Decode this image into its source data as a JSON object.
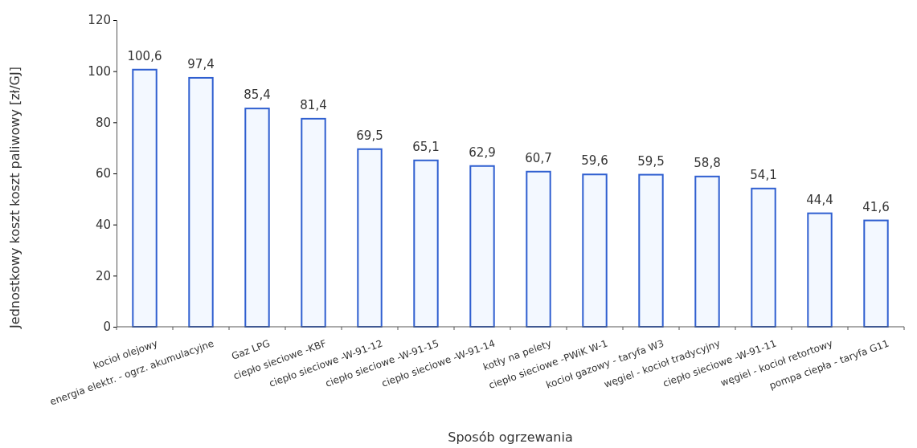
{
  "chart_data": {
    "type": "bar",
    "xlabel": "Sposób ogrzewania",
    "ylabel": "Jednostkowy koszt koszt paliwowy [zł/GJ]",
    "categories": [
      "kocioł olejowy",
      "energia elektr. - ogrz. akumulacyjne",
      "Gaz LPG",
      "ciepło sieciowe -KBF",
      "ciepło sieciowe -W-91-12",
      "ciepło sieciowe -W-91-15",
      "ciepło sieciowe -W-91-14",
      "kotły na pelety",
      "ciepło sieciowe -PWiK W-1",
      "kocioł gazowy - taryfa W3",
      "węgiel - kocioł tradycyjny",
      "ciepło sieciowe -W-91-11",
      "węgiel - kocioł retortowy",
      "pompa ciepła - taryfa G11"
    ],
    "values": [
      100.6,
      97.4,
      85.4,
      81.4,
      69.5,
      65.1,
      62.9,
      60.7,
      59.6,
      59.5,
      58.8,
      54.1,
      44.4,
      41.6
    ],
    "value_labels": [
      "100,6",
      "97,4",
      "85,4",
      "81,4",
      "69,5",
      "65,1",
      "62,9",
      "60,7",
      "59,6",
      "59,5",
      "58,8",
      "54,1",
      "44,4",
      "41,6"
    ],
    "color": "#2f5fd0",
    "ylim": [
      0,
      120
    ],
    "yticks": [
      0,
      20,
      40,
      60,
      80,
      100,
      120
    ],
    "grid": false
  }
}
